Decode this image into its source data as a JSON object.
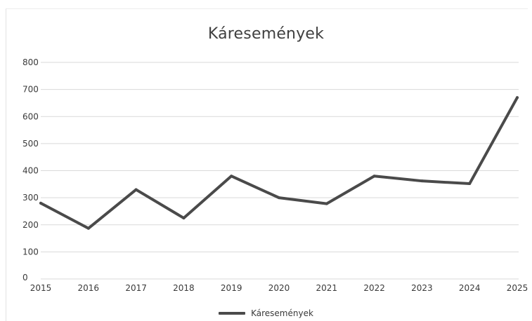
{
  "chart_data": {
    "type": "line",
    "title": "Káresemények",
    "xlabel": "",
    "ylabel": "",
    "categories": [
      "2015",
      "2016",
      "2017",
      "2018",
      "2019",
      "2020",
      "2021",
      "2022",
      "2023",
      "2024",
      "2025"
    ],
    "series": [
      {
        "name": "Káresemények",
        "values": [
          280,
          187,
          330,
          225,
          380,
          300,
          278,
          380,
          362,
          352,
          670
        ]
      }
    ],
    "ylim": [
      0,
      800
    ],
    "yticks": [
      "0",
      "100",
      "200",
      "300",
      "400",
      "500",
      "600",
      "700",
      "800"
    ],
    "grid": true,
    "legend": "bottom",
    "colors": {
      "line": "#4a4a4a",
      "grid": "#d9d9d9",
      "text": "#3a3a3a"
    }
  }
}
